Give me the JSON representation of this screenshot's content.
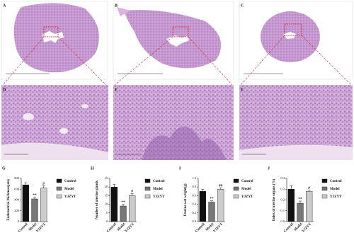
{
  "figure_panels": [
    "A",
    "B",
    "C",
    "D",
    "E",
    "F"
  ],
  "chart_data": [
    {
      "type": "bar",
      "panel_label": "G",
      "y_label": "Endometrial thickness(μm)",
      "categories": [
        "Control",
        "Model",
        "YJZYT"
      ],
      "colors": [
        "#111111",
        "#777777",
        "#cccccc"
      ],
      "values": [
        680,
        420,
        620
      ],
      "errors": [
        40,
        30,
        40
      ],
      "significance": [
        null,
        "**",
        "#"
      ],
      "ylim": [
        0,
        800
      ],
      "yticks": [
        0,
        200,
        400,
        600,
        800
      ]
    },
    {
      "type": "bar",
      "panel_label": "H",
      "y_label": "Number of uterine glands",
      "categories": [
        "Control",
        "Model",
        "YJZYT"
      ],
      "colors": [
        "#111111",
        "#777777",
        "#cccccc"
      ],
      "values": [
        20,
        9,
        15
      ],
      "errors": [
        1.5,
        1,
        1.2
      ],
      "significance": [
        null,
        "**",
        "#"
      ],
      "ylim": [
        0,
        25
      ],
      "yticks": [
        0,
        5,
        10,
        15,
        20,
        25
      ]
    },
    {
      "type": "bar",
      "panel_label": "I",
      "y_label": "Uterine wet weight(g)",
      "categories": [
        "Control",
        "Model",
        "YJZYT"
      ],
      "colors": [
        "#111111",
        "#777777",
        "#cccccc"
      ],
      "values": [
        0.7,
        0.45,
        0.75
      ],
      "errors": [
        0.05,
        0.03,
        0.03
      ],
      "significance": [
        null,
        "**",
        "##"
      ],
      "ylim": [
        0,
        1.0
      ],
      "yticks": [
        {
          "value": 0,
          "label": "0.0"
        },
        0.2,
        0.4,
        0.6,
        0.8,
        {
          "value": 1,
          "label": "1.0"
        }
      ]
    },
    {
      "type": "bar",
      "panel_label": "J",
      "y_label": "Index of uterine organs (%)",
      "categories": [
        "Control",
        "Model",
        "YJZYT"
      ],
      "colors": [
        "#111111",
        "#777777",
        "#cccccc"
      ],
      "values": [
        0.3,
        0.17,
        0.28
      ],
      "errors": [
        0.03,
        0.02,
        0.01
      ],
      "significance": [
        null,
        "**",
        "#"
      ],
      "ylim": [
        0,
        0.4
      ],
      "yticks": [
        {
          "value": 0,
          "label": "0.0"
        },
        0.1,
        0.2,
        0.3,
        0.4
      ]
    }
  ]
}
